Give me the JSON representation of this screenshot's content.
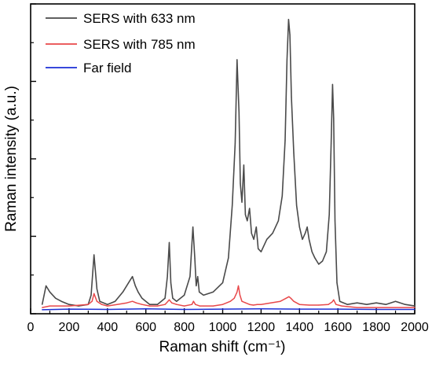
{
  "chart_data": {
    "type": "line",
    "title": "",
    "xlabel": "Raman shift (cm⁻¹)",
    "ylabel": "Raman intensity (a.u.)",
    "xlim": [
      0,
      2000
    ],
    "ylim": [
      0,
      100
    ],
    "x_ticks": [
      "0",
      "200",
      "400",
      "600",
      "800",
      "1000",
      "1200",
      "1400",
      "1600",
      "1800",
      "2000"
    ],
    "y_ticks_labeled": false,
    "grid": false,
    "legend_position": "top-left",
    "series": [
      {
        "name": "SERS with 633 nm",
        "color": "#4a4a4a",
        "x": [
          60,
          80,
          100,
          130,
          160,
          200,
          250,
          300,
          315,
          330,
          345,
          360,
          400,
          440,
          480,
          510,
          530,
          545,
          560,
          580,
          620,
          660,
          700,
          712,
          722,
          730,
          740,
          760,
          800,
          830,
          845,
          855,
          862,
          870,
          878,
          900,
          950,
          1000,
          1030,
          1050,
          1065,
          1075,
          1085,
          1092,
          1100,
          1110,
          1118,
          1128,
          1140,
          1150,
          1162,
          1175,
          1185,
          1200,
          1230,
          1260,
          1290,
          1310,
          1325,
          1335,
          1343,
          1350,
          1358,
          1370,
          1385,
          1400,
          1415,
          1430,
          1440,
          1450,
          1465,
          1480,
          1500,
          1520,
          1540,
          1555,
          1565,
          1572,
          1578,
          1585,
          1595,
          1610,
          1650,
          1700,
          1750,
          1800,
          1850,
          1900,
          1950,
          2000
        ],
        "values": [
          3,
          9,
          7,
          5,
          4,
          3,
          2.5,
          3,
          6,
          19,
          8,
          4,
          3,
          4,
          7,
          10,
          12,
          9,
          7,
          5,
          3,
          3,
          5,
          12,
          23,
          10,
          5,
          4,
          6,
          12,
          28,
          18,
          9,
          12,
          7,
          6,
          7,
          10,
          18,
          35,
          55,
          82,
          65,
          42,
          36,
          48,
          32,
          30,
          34,
          26,
          24,
          28,
          21,
          20,
          24,
          26,
          30,
          38,
          56,
          82,
          95,
          90,
          70,
          52,
          35,
          28,
          24,
          26,
          28,
          24,
          20,
          18,
          16,
          17,
          20,
          32,
          55,
          74,
          63,
          30,
          10,
          4,
          3,
          3.5,
          3,
          3.5,
          3,
          4,
          3,
          2.5
        ]
      },
      {
        "name": "SERS with 785 nm",
        "color": "#e8484a",
        "x": [
          60,
          100,
          200,
          300,
          320,
          330,
          345,
          370,
          400,
          450,
          500,
          530,
          550,
          580,
          620,
          660,
          700,
          715,
          722,
          735,
          760,
          800,
          840,
          848,
          858,
          880,
          900,
          950,
          1000,
          1040,
          1060,
          1075,
          1082,
          1090,
          1100,
          1120,
          1140,
          1160,
          1180,
          1200,
          1250,
          1300,
          1330,
          1345,
          1355,
          1370,
          1400,
          1450,
          1500,
          1550,
          1570,
          1578,
          1590,
          1620,
          1700,
          1800,
          1900,
          2000
        ],
        "values": [
          2,
          2.5,
          2.5,
          3,
          4,
          6.5,
          4,
          3,
          2.5,
          3,
          3.5,
          4,
          3.5,
          3,
          2.5,
          2.5,
          3,
          4,
          4.5,
          3.5,
          3,
          2.5,
          3,
          4,
          3,
          2.5,
          2.5,
          2.5,
          3,
          4,
          5,
          7,
          9,
          6,
          4,
          3.5,
          3,
          2.8,
          3,
          3,
          3.5,
          4,
          5,
          5.5,
          5,
          4,
          3,
          2.8,
          2.8,
          3,
          3.8,
          4.5,
          3,
          2.5,
          2,
          2,
          2,
          2
        ]
      },
      {
        "name": "Far field",
        "color": "#1c2fd6",
        "x": [
          60,
          200,
          400,
          600,
          800,
          1000,
          1200,
          1400,
          1600,
          1800,
          2000
        ],
        "values": [
          1.3,
          1.5,
          1.4,
          1.6,
          1.4,
          1.5,
          1.6,
          1.5,
          1.5,
          1.4,
          1.4
        ]
      }
    ]
  }
}
